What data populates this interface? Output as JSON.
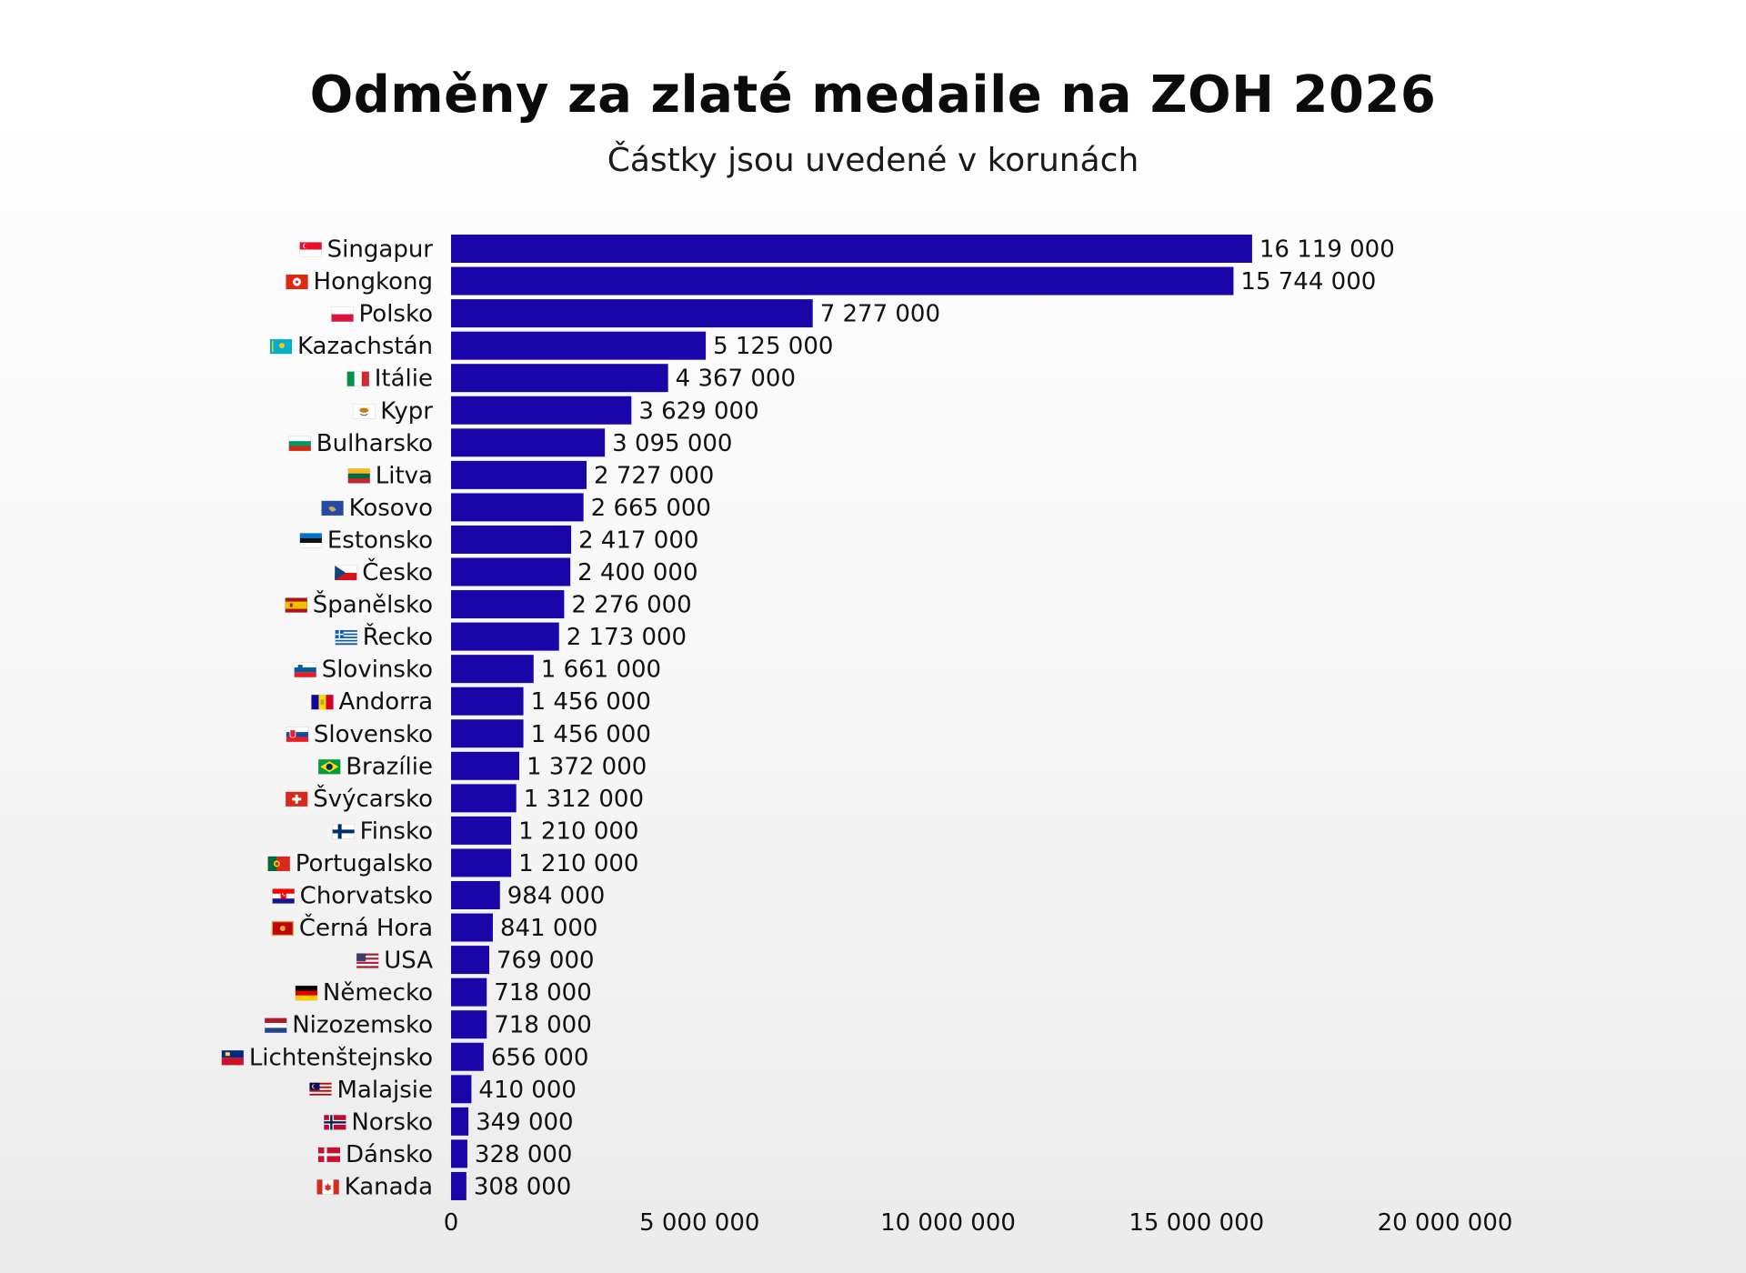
{
  "chart_data": {
    "type": "bar",
    "orientation": "horizontal",
    "title": "Odměny za zlaté medaile na ZOH 2026",
    "subtitle": "Částky jsou uvedené v korunách",
    "xlim": [
      0,
      20000000
    ],
    "ticks": [
      0,
      5000000,
      10000000,
      15000000,
      20000000
    ],
    "tick_labels": [
      "0",
      "5 000 000",
      "10 000 000",
      "15 000 000",
      "20 000 000"
    ],
    "grid": false,
    "legend": "none",
    "bar_color": "#1a05a8",
    "categories": [
      "Singapur",
      "Hongkong",
      "Polsko",
      "Kazachstán",
      "Itálie",
      "Kypr",
      "Bulharsko",
      "Litva",
      "Kosovo",
      "Estonsko",
      "Česko",
      "Španělsko",
      "Řecko",
      "Slovinsko",
      "Andorra",
      "Slovensko",
      "Brazílie",
      "Švýcarsko",
      "Finsko",
      "Portugalsko",
      "Chorvatsko",
      "Černá Hora",
      "USA",
      "Německo",
      "Nizozemsko",
      "Lichtenštejnsko",
      "Malajsie",
      "Norsko",
      "Dánsko",
      "Kanada"
    ],
    "values": [
      16119000,
      15744000,
      7277000,
      5125000,
      4367000,
      3629000,
      3095000,
      2727000,
      2665000,
      2417000,
      2400000,
      2276000,
      2173000,
      1661000,
      1456000,
      1456000,
      1372000,
      1312000,
      1210000,
      1210000,
      984000,
      841000,
      769000,
      718000,
      718000,
      656000,
      410000,
      349000,
      328000,
      308000
    ],
    "value_labels": [
      "16 119 000",
      "15 744 000",
      "7 277 000",
      "5 125 000",
      "4 367 000",
      "3 629 000",
      "3 095 000",
      "2 727 000",
      "2 665 000",
      "2 417 000",
      "2 400 000",
      "2 276 000",
      "2 173 000",
      "1 661 000",
      "1 456 000",
      "1 456 000",
      "1 372 000",
      "1 312 000",
      "1 210 000",
      "1 210 000",
      "984 000",
      "841 000",
      "769 000",
      "718 000",
      "718 000",
      "656 000",
      "410 000",
      "349 000",
      "328 000",
      "308 000"
    ],
    "flag_icons": [
      "flag-singapore-icon",
      "flag-hong-kong-icon",
      "flag-poland-icon",
      "flag-kazakhstan-icon",
      "flag-italy-icon",
      "flag-cyprus-icon",
      "flag-bulgaria-icon",
      "flag-lithuania-icon",
      "flag-kosovo-icon",
      "flag-estonia-icon",
      "flag-czechia-icon",
      "flag-spain-icon",
      "flag-greece-icon",
      "flag-slovenia-icon",
      "flag-andorra-icon",
      "flag-slovakia-icon",
      "flag-brazil-icon",
      "flag-switzerland-icon",
      "flag-finland-icon",
      "flag-portugal-icon",
      "flag-croatia-icon",
      "flag-montenegro-icon",
      "flag-usa-icon",
      "flag-germany-icon",
      "flag-netherlands-icon",
      "flag-liechtenstein-icon",
      "flag-malaysia-icon",
      "flag-norway-icon",
      "flag-denmark-icon",
      "flag-canada-icon"
    ]
  }
}
